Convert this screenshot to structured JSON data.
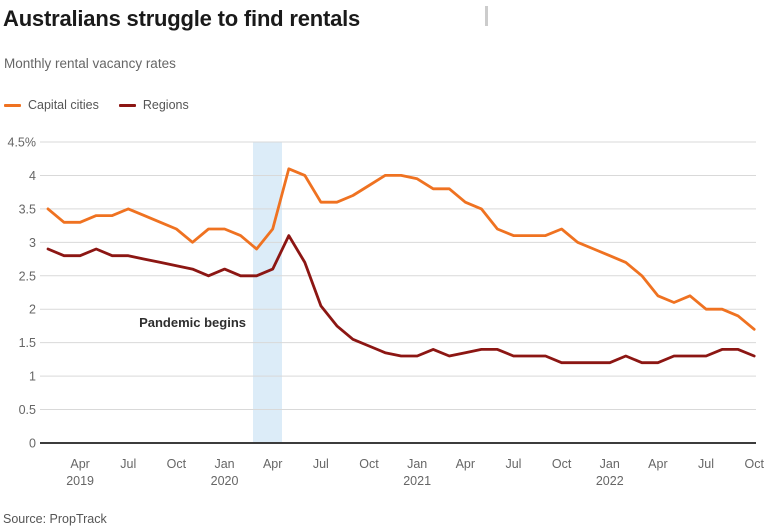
{
  "header": {
    "title": "Australians struggle to find rentals",
    "subtitle": "Monthly rental vacancy rates"
  },
  "legend": [
    {
      "label": "Capital cities",
      "color": "#ef7221"
    },
    {
      "label": "Regions",
      "color": "#8c1613"
    }
  ],
  "source": {
    "text": "Source: PropTrack"
  },
  "chart_data": {
    "type": "line",
    "title": "Australians struggle to find rentals",
    "subtitle": "Monthly rental vacancy rates",
    "unit": "%",
    "grid": true,
    "legend_position": "top-left",
    "ylim": [
      0,
      4.5
    ],
    "ytick_step": 0.5,
    "ytick_labels": [
      "0",
      "0.5",
      "1",
      "1.5",
      "2",
      "2.5",
      "3",
      "3.5",
      "4",
      "4.5%"
    ],
    "x": [
      "Feb 2019",
      "Mar 2019",
      "Apr 2019",
      "May 2019",
      "Jun 2019",
      "Jul 2019",
      "Aug 2019",
      "Sep 2019",
      "Oct 2019",
      "Nov 2019",
      "Dec 2019",
      "Jan 2020",
      "Feb 2020",
      "Mar 2020",
      "Apr 2020",
      "May 2020",
      "Jun 2020",
      "Jul 2020",
      "Aug 2020",
      "Sep 2020",
      "Oct 2020",
      "Nov 2020",
      "Dec 2020",
      "Jan 2021",
      "Feb 2021",
      "Mar 2021",
      "Apr 2021",
      "May 2021",
      "Jun 2021",
      "Jul 2021",
      "Aug 2021",
      "Sep 2021",
      "Oct 2021",
      "Nov 2021",
      "Dec 2021",
      "Jan 2022",
      "Feb 2022",
      "Mar 2022",
      "Apr 2022",
      "May 2022",
      "Jun 2022",
      "Jul 2022",
      "Aug 2022",
      "Sep 2022",
      "Oct 2022"
    ],
    "series": [
      {
        "name": "Capital cities",
        "color": "#ef7221",
        "values": [
          3.5,
          3.3,
          3.3,
          3.4,
          3.4,
          3.5,
          3.4,
          3.3,
          3.2,
          3.0,
          3.2,
          3.2,
          3.1,
          2.9,
          3.2,
          4.1,
          4.0,
          3.6,
          3.6,
          3.7,
          3.85,
          4.0,
          4.0,
          3.95,
          3.8,
          3.8,
          3.6,
          3.5,
          3.2,
          3.1,
          3.1,
          3.1,
          3.2,
          3.0,
          2.9,
          2.8,
          2.7,
          2.5,
          2.2,
          2.1,
          2.2,
          2.0,
          2.0,
          1.9,
          1.7
        ]
      },
      {
        "name": "Regions",
        "color": "#8c1613",
        "values": [
          2.9,
          2.8,
          2.8,
          2.9,
          2.8,
          2.8,
          2.75,
          2.7,
          2.65,
          2.6,
          2.5,
          2.6,
          2.5,
          2.5,
          2.6,
          3.1,
          2.7,
          2.05,
          1.75,
          1.55,
          1.45,
          1.35,
          1.3,
          1.3,
          1.4,
          1.3,
          1.35,
          1.4,
          1.4,
          1.3,
          1.3,
          1.3,
          1.2,
          1.2,
          1.2,
          1.2,
          1.3,
          1.2,
          1.2,
          1.3,
          1.3,
          1.3,
          1.4,
          1.4,
          1.3
        ]
      }
    ],
    "xticks": [
      {
        "label": "Apr",
        "year": "2019",
        "i": 2
      },
      {
        "label": "Jul",
        "i": 5
      },
      {
        "label": "Oct",
        "i": 8
      },
      {
        "label": "Jan",
        "year": "2020",
        "i": 11
      },
      {
        "label": "Apr",
        "i": 14
      },
      {
        "label": "Jul",
        "i": 17
      },
      {
        "label": "Oct",
        "i": 20
      },
      {
        "label": "Jan",
        "year": "2021",
        "i": 23
      },
      {
        "label": "Apr",
        "i": 26
      },
      {
        "label": "Jul",
        "i": 29
      },
      {
        "label": "Oct",
        "i": 32
      },
      {
        "label": "Jan",
        "year": "2022",
        "i": 35
      },
      {
        "label": "Apr",
        "i": 38
      },
      {
        "label": "Jul",
        "i": 41
      },
      {
        "label": "Oct",
        "i": 44
      }
    ],
    "highlight_band": {
      "from": "Mar 2020",
      "to": "mid-Apr 2020",
      "color": "#dcecf8"
    },
    "annotation": {
      "text": "Pandemic begins"
    },
    "colors": {
      "grid": "#d9d9d9",
      "axis": "#3c3c3c",
      "tick_text": "#666666",
      "annotation_text": "#2e2e2e"
    }
  }
}
